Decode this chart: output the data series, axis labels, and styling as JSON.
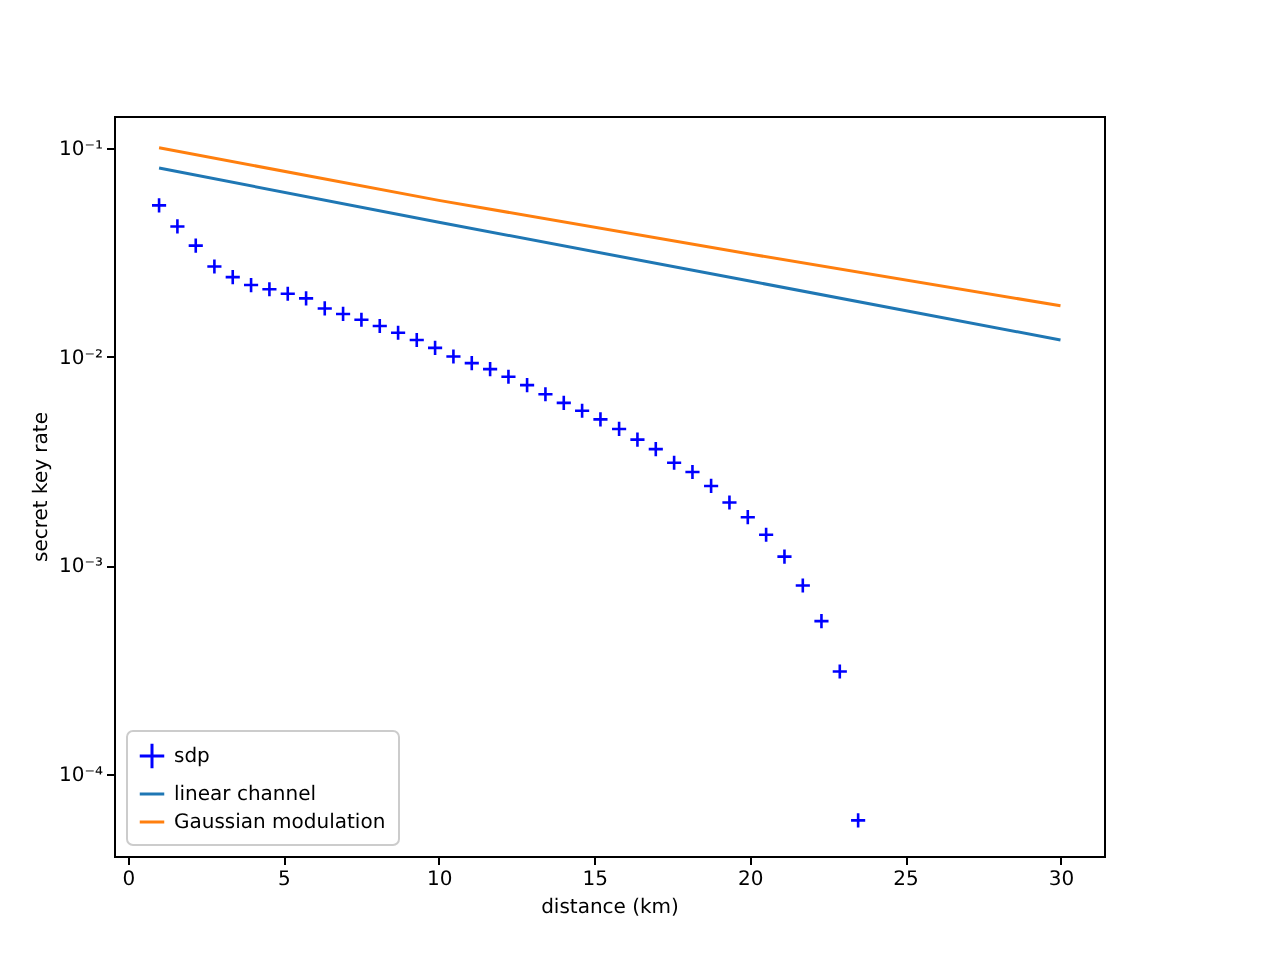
{
  "chart_data": {
    "type": "line",
    "xlabel": "distance (km)",
    "ylabel": "secret key rate",
    "log": "y",
    "grid": false,
    "legend": "bottom left",
    "xlim": [
      -0.45,
      31.4
    ],
    "xticks": [
      0,
      5,
      10,
      15,
      20,
      25,
      30
    ],
    "ylim": [
      4.05e-05,
      0.142
    ],
    "yticks": [
      {
        "value": 0.1,
        "label": "10⁻¹"
      },
      {
        "value": 0.01,
        "label": "10⁻²"
      },
      {
        "value": 0.001,
        "label": "10⁻³"
      },
      {
        "value": 0.0001,
        "label": "10⁻⁴"
      }
    ],
    "series": [
      {
        "name": "sdp",
        "type": "scatter",
        "marker": "cross",
        "color": "#0000ff",
        "x": [
          1,
          1.59,
          2.18,
          2.78,
          3.37,
          3.96,
          4.55,
          5.14,
          5.73,
          6.33,
          6.92,
          7.51,
          8.1,
          8.69,
          9.29,
          9.88,
          10.47,
          11.06,
          11.65,
          12.24,
          12.84,
          13.43,
          14.02,
          14.61,
          15.2,
          15.8,
          16.39,
          16.98,
          17.57,
          18.16,
          18.76,
          19.35,
          19.94,
          20.53,
          21.12,
          21.71,
          22.31,
          22.9,
          23.49
        ],
        "values": [
          0.053,
          0.042,
          0.034,
          0.027,
          0.024,
          0.022,
          0.021,
          0.02,
          0.019,
          0.017,
          0.016,
          0.015,
          0.014,
          0.013,
          0.012,
          0.011,
          0.01,
          0.0093,
          0.0087,
          0.008,
          0.0073,
          0.0066,
          0.006,
          0.0055,
          0.005,
          0.0045,
          0.004,
          0.0036,
          0.0031,
          0.0028,
          0.0024,
          0.002,
          0.0017,
          0.0014,
          0.0011,
          0.0008,
          0.00054,
          0.00031,
          6e-05
        ]
      },
      {
        "name": "linear channel",
        "color": "#1f77b4",
        "x": [
          1,
          10,
          20,
          30
        ],
        "values": [
          0.08,
          0.044,
          0.023,
          0.012
        ]
      },
      {
        "name": "Gaussian modulation",
        "color": "#ff7f0e",
        "x": [
          1,
          10,
          20,
          30
        ],
        "values": [
          0.1,
          0.056,
          0.031,
          0.0175
        ]
      }
    ]
  }
}
